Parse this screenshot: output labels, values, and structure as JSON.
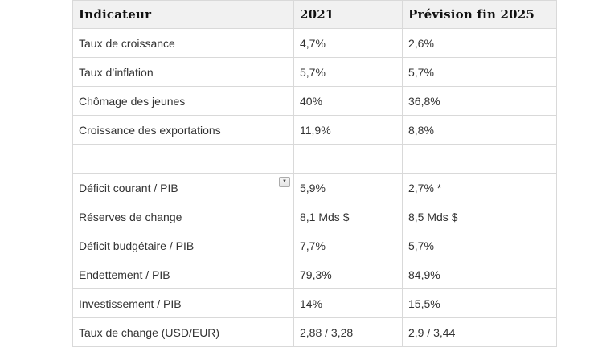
{
  "table": {
    "columns": [
      {
        "label": "Indicateur"
      },
      {
        "label": "2021"
      },
      {
        "label": "Prévision fin 2025"
      }
    ],
    "rows": [
      {
        "indicator": "Taux de croissance",
        "v2021": "4,7%",
        "v2025": "2,6%"
      },
      {
        "indicator": "Taux d’inflation",
        "v2021": "5,7%",
        "v2025": "5,7%"
      },
      {
        "indicator": "Chômage des jeunes",
        "v2021": "40%",
        "v2025": "36,8%"
      },
      {
        "indicator": "Croissance des exportations",
        "v2021": "11,9%",
        "v2025": "8,8%"
      },
      {
        "indicator": "",
        "v2021": "",
        "v2025": ""
      },
      {
        "indicator": "Déficit courant / PIB",
        "v2021": "5,9%",
        "v2025": "2,7% *"
      },
      {
        "indicator": "Réserves de change",
        "v2021": "8,1 Mds $",
        "v2025": "8,5 Mds $"
      },
      {
        "indicator": "Déficit budgétaire / PIB",
        "v2021": "7,7%",
        "v2025": "5,7%"
      },
      {
        "indicator": "Endettement / PIB",
        "v2021": "79,3%",
        "v2025": "84,9%"
      },
      {
        "indicator": "Investissement / PIB",
        "v2021": "14%",
        "v2025": "15,5%"
      },
      {
        "indicator": "Taux de change (USD/EUR)",
        "v2021": "2,88 / 3,28",
        "v2025": "2,9 / 3,44"
      }
    ],
    "icons": {
      "dropdown": "▼"
    },
    "colors": {
      "header_bg": "#f1f1f1",
      "border": "#d9d9d9",
      "body_text": "#333333",
      "header_text": "#111111"
    }
  }
}
